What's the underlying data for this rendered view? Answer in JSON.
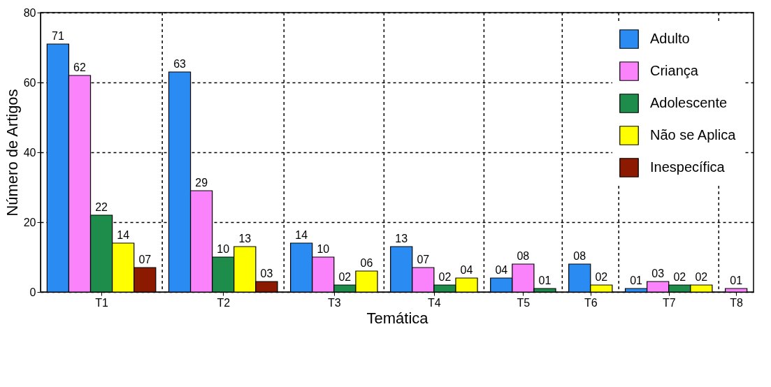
{
  "chart_data": {
    "type": "bar",
    "xlabel": "Temática",
    "ylabel": "Número de Artigos",
    "categories": [
      "T1",
      "T2",
      "T3",
      "T4",
      "T5",
      "T6",
      "T7",
      "T8"
    ],
    "series": [
      {
        "name": "Adulto",
        "color": "#2a8cf2",
        "values": [
          71,
          63,
          14,
          13,
          4,
          8,
          1,
          null
        ],
        "value_labels": [
          "71",
          "63",
          "14",
          "13",
          "04",
          "08",
          "01",
          null
        ]
      },
      {
        "name": "Criança",
        "color": "#fa82fa",
        "values": [
          62,
          29,
          10,
          7,
          8,
          null,
          3,
          1
        ],
        "value_labels": [
          "62",
          "29",
          "10",
          "07",
          "08",
          null,
          "03",
          "01"
        ]
      },
      {
        "name": "Adolescente",
        "color": "#1e8c4b",
        "values": [
          22,
          10,
          2,
          2,
          1,
          null,
          2,
          null
        ],
        "value_labels": [
          "22",
          "10",
          "02",
          "02",
          "01",
          null,
          "02",
          null
        ]
      },
      {
        "name": "Não se Aplica",
        "color": "#ffff00",
        "values": [
          14,
          13,
          6,
          4,
          null,
          2,
          2,
          null
        ],
        "value_labels": [
          "14",
          "13",
          "06",
          "04",
          null,
          "02",
          "02",
          null
        ]
      },
      {
        "name": "Inespecífica",
        "color": "#8b1a00",
        "values": [
          7,
          3,
          null,
          null,
          null,
          null,
          null,
          null
        ],
        "value_labels": [
          "07",
          "03",
          null,
          null,
          null,
          null,
          null,
          null
        ]
      }
    ],
    "ylim": [
      0,
      80
    ],
    "yticks": [
      0,
      20,
      40,
      60,
      80
    ],
    "grid": true,
    "legend": "top right"
  }
}
